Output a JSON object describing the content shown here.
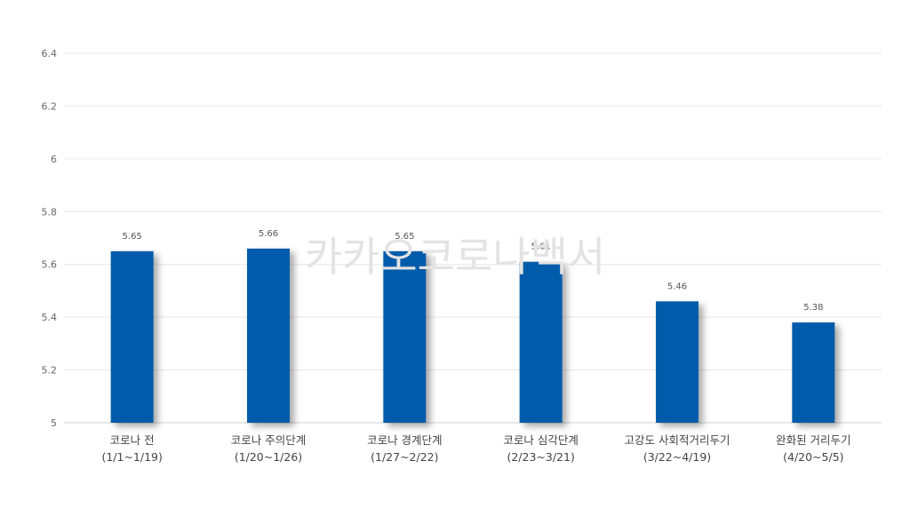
{
  "watermark": "카카오코로나백서",
  "colors": {
    "bar": "#005BAA",
    "grid": "#e6e6e6",
    "axis": "#d0d0d0"
  },
  "chart_data": {
    "type": "bar",
    "title": "",
    "xlabel": "",
    "ylabel": "",
    "ylim": [
      5,
      6.4
    ],
    "y_ticks": [
      5,
      5.2,
      5.4,
      5.6,
      5.8,
      6,
      6.2,
      6.4
    ],
    "y_tick_labels": [
      "5",
      "5.2",
      "5.4",
      "5.6",
      "5.8",
      "6",
      "6.2",
      "6.4"
    ],
    "grid": true,
    "legend": "none",
    "categories": [
      [
        "코로나 전",
        "(1/1~1/19)"
      ],
      [
        "코로나 주의단계",
        "(1/20~1/26)"
      ],
      [
        "코로나 경계단계",
        "(1/27~2/22)"
      ],
      [
        "코로나 심각단계",
        "(2/23~3/21)"
      ],
      [
        "고강도 사회적거리두기",
        "(3/22~4/19)"
      ],
      [
        "완화된 거리두기",
        "(4/20~5/5)"
      ]
    ],
    "values": [
      5.65,
      5.66,
      5.65,
      5.61,
      5.46,
      5.38
    ],
    "value_labels": [
      "5.65",
      "5.66",
      "5.65",
      "5.61",
      "5.46",
      "5.38"
    ]
  }
}
